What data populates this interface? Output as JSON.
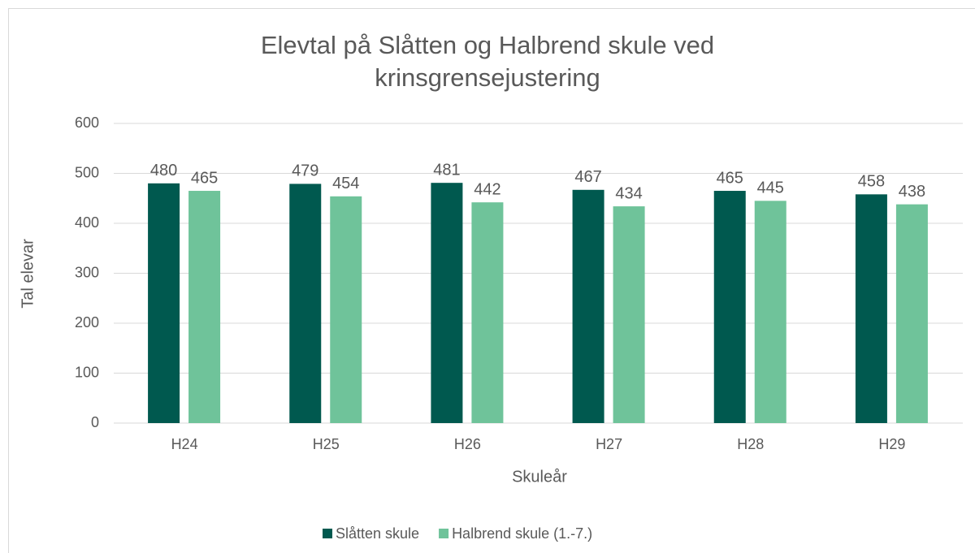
{
  "chart_data": {
    "type": "bar",
    "title": "Elevtal på Slåtten og Halbrend skule ved krinsgrensejustering",
    "x_label": "Skuleår",
    "y_label": "Tal elevar",
    "categories": [
      "H24",
      "H25",
      "H26",
      "H27",
      "H28",
      "H29"
    ],
    "series": [
      {
        "name": "Slåtten skule",
        "color": "#00594f",
        "values": [
          480,
          479,
          481,
          467,
          465,
          458
        ]
      },
      {
        "name": "Halbrend skule (1.-7.)",
        "color": "#6fc39a",
        "values": [
          465,
          454,
          442,
          434,
          445,
          438
        ]
      }
    ],
    "ylim": [
      0,
      600
    ],
    "yticks": [
      0,
      100,
      200,
      300,
      400,
      500,
      600
    ],
    "grid": true,
    "legend": "bottom"
  }
}
